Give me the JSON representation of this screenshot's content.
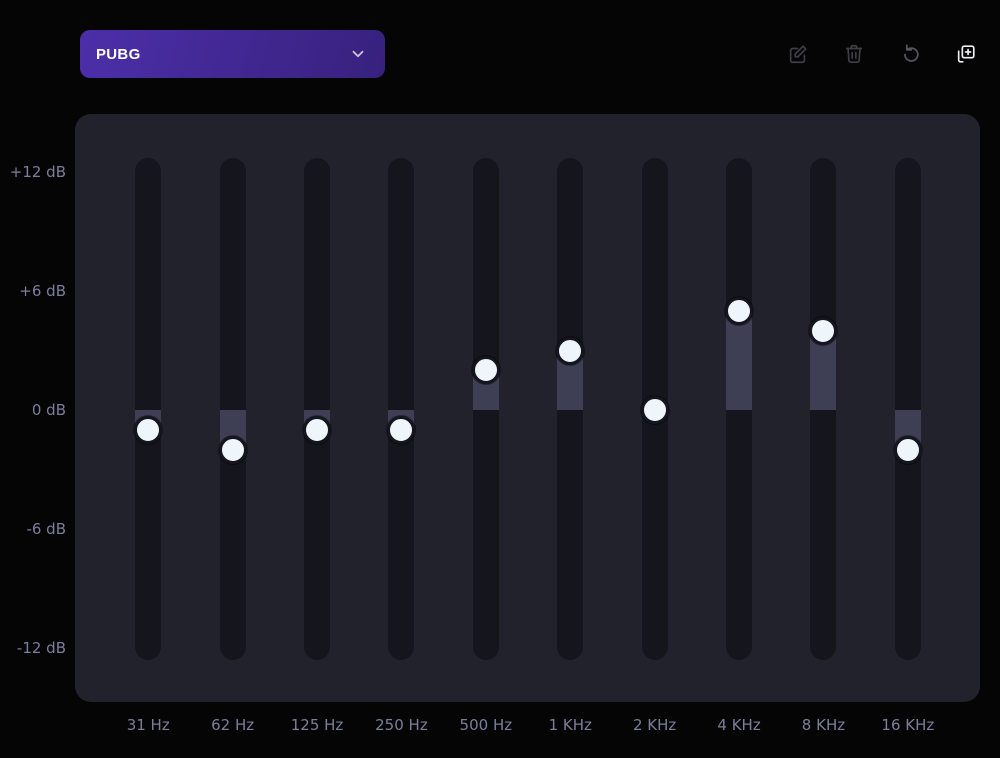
{
  "preset_selector": {
    "selected": "PUBG"
  },
  "toolbar": {
    "actions": [
      {
        "name": "edit-preset",
        "icon": "pencil-square-icon",
        "tone": "dim"
      },
      {
        "name": "delete-preset",
        "icon": "trash-icon",
        "tone": "dim"
      },
      {
        "name": "reset-preset",
        "icon": "rotate-ccw-icon",
        "tone": "medium"
      },
      {
        "name": "add-preset",
        "icon": "copy-plus-icon",
        "tone": "bright"
      }
    ]
  },
  "equalizer": {
    "db_axis": {
      "labels": [
        "+12 dB",
        "+6 dB",
        "0 dB",
        "-6 dB",
        "-12 dB"
      ],
      "values": [
        12,
        6,
        0,
        -6,
        -12
      ],
      "range_db": [
        -12,
        12
      ]
    },
    "bands": [
      {
        "freq": "31 Hz",
        "gain_db": -1
      },
      {
        "freq": "62 Hz",
        "gain_db": -2
      },
      {
        "freq": "125 Hz",
        "gain_db": -1
      },
      {
        "freq": "250 Hz",
        "gain_db": -1
      },
      {
        "freq": "500 Hz",
        "gain_db": 2
      },
      {
        "freq": "1 KHz",
        "gain_db": 3
      },
      {
        "freq": "2 KHz",
        "gain_db": 0
      },
      {
        "freq": "4 KHz",
        "gain_db": 5
      },
      {
        "freq": "8 KHz",
        "gain_db": 4
      },
      {
        "freq": "16 KHz",
        "gain_db": -2
      }
    ]
  },
  "colors": {
    "background": "#050506",
    "panel": "#22222c",
    "track": "#15151d",
    "fill": "#3e3e55",
    "knob": "#eef6fc",
    "label_text": "#7d7d9c",
    "accent_gradient_start": "#4c2fa9",
    "accent_gradient_end": "#37217d",
    "icon_dim": "#3f3f47",
    "icon_medium": "#55555e",
    "icon_bright": "#f2f2f5"
  }
}
